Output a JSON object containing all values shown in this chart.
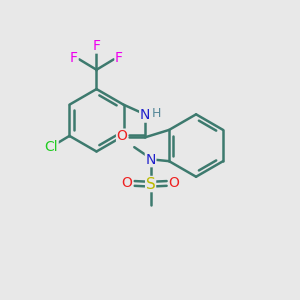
{
  "background_color": "#e8e8e8",
  "bond_color": "#3d7a6e",
  "bond_width": 1.8,
  "atom_colors": {
    "F": "#ee00ee",
    "Cl": "#22cc22",
    "N": "#2020cc",
    "O": "#ee2222",
    "S": "#bbbb00",
    "H": "#558899",
    "C": "#3d7a6e"
  },
  "font_size": 10,
  "fig_size": [
    3.0,
    3.0
  ],
  "dpi": 100
}
